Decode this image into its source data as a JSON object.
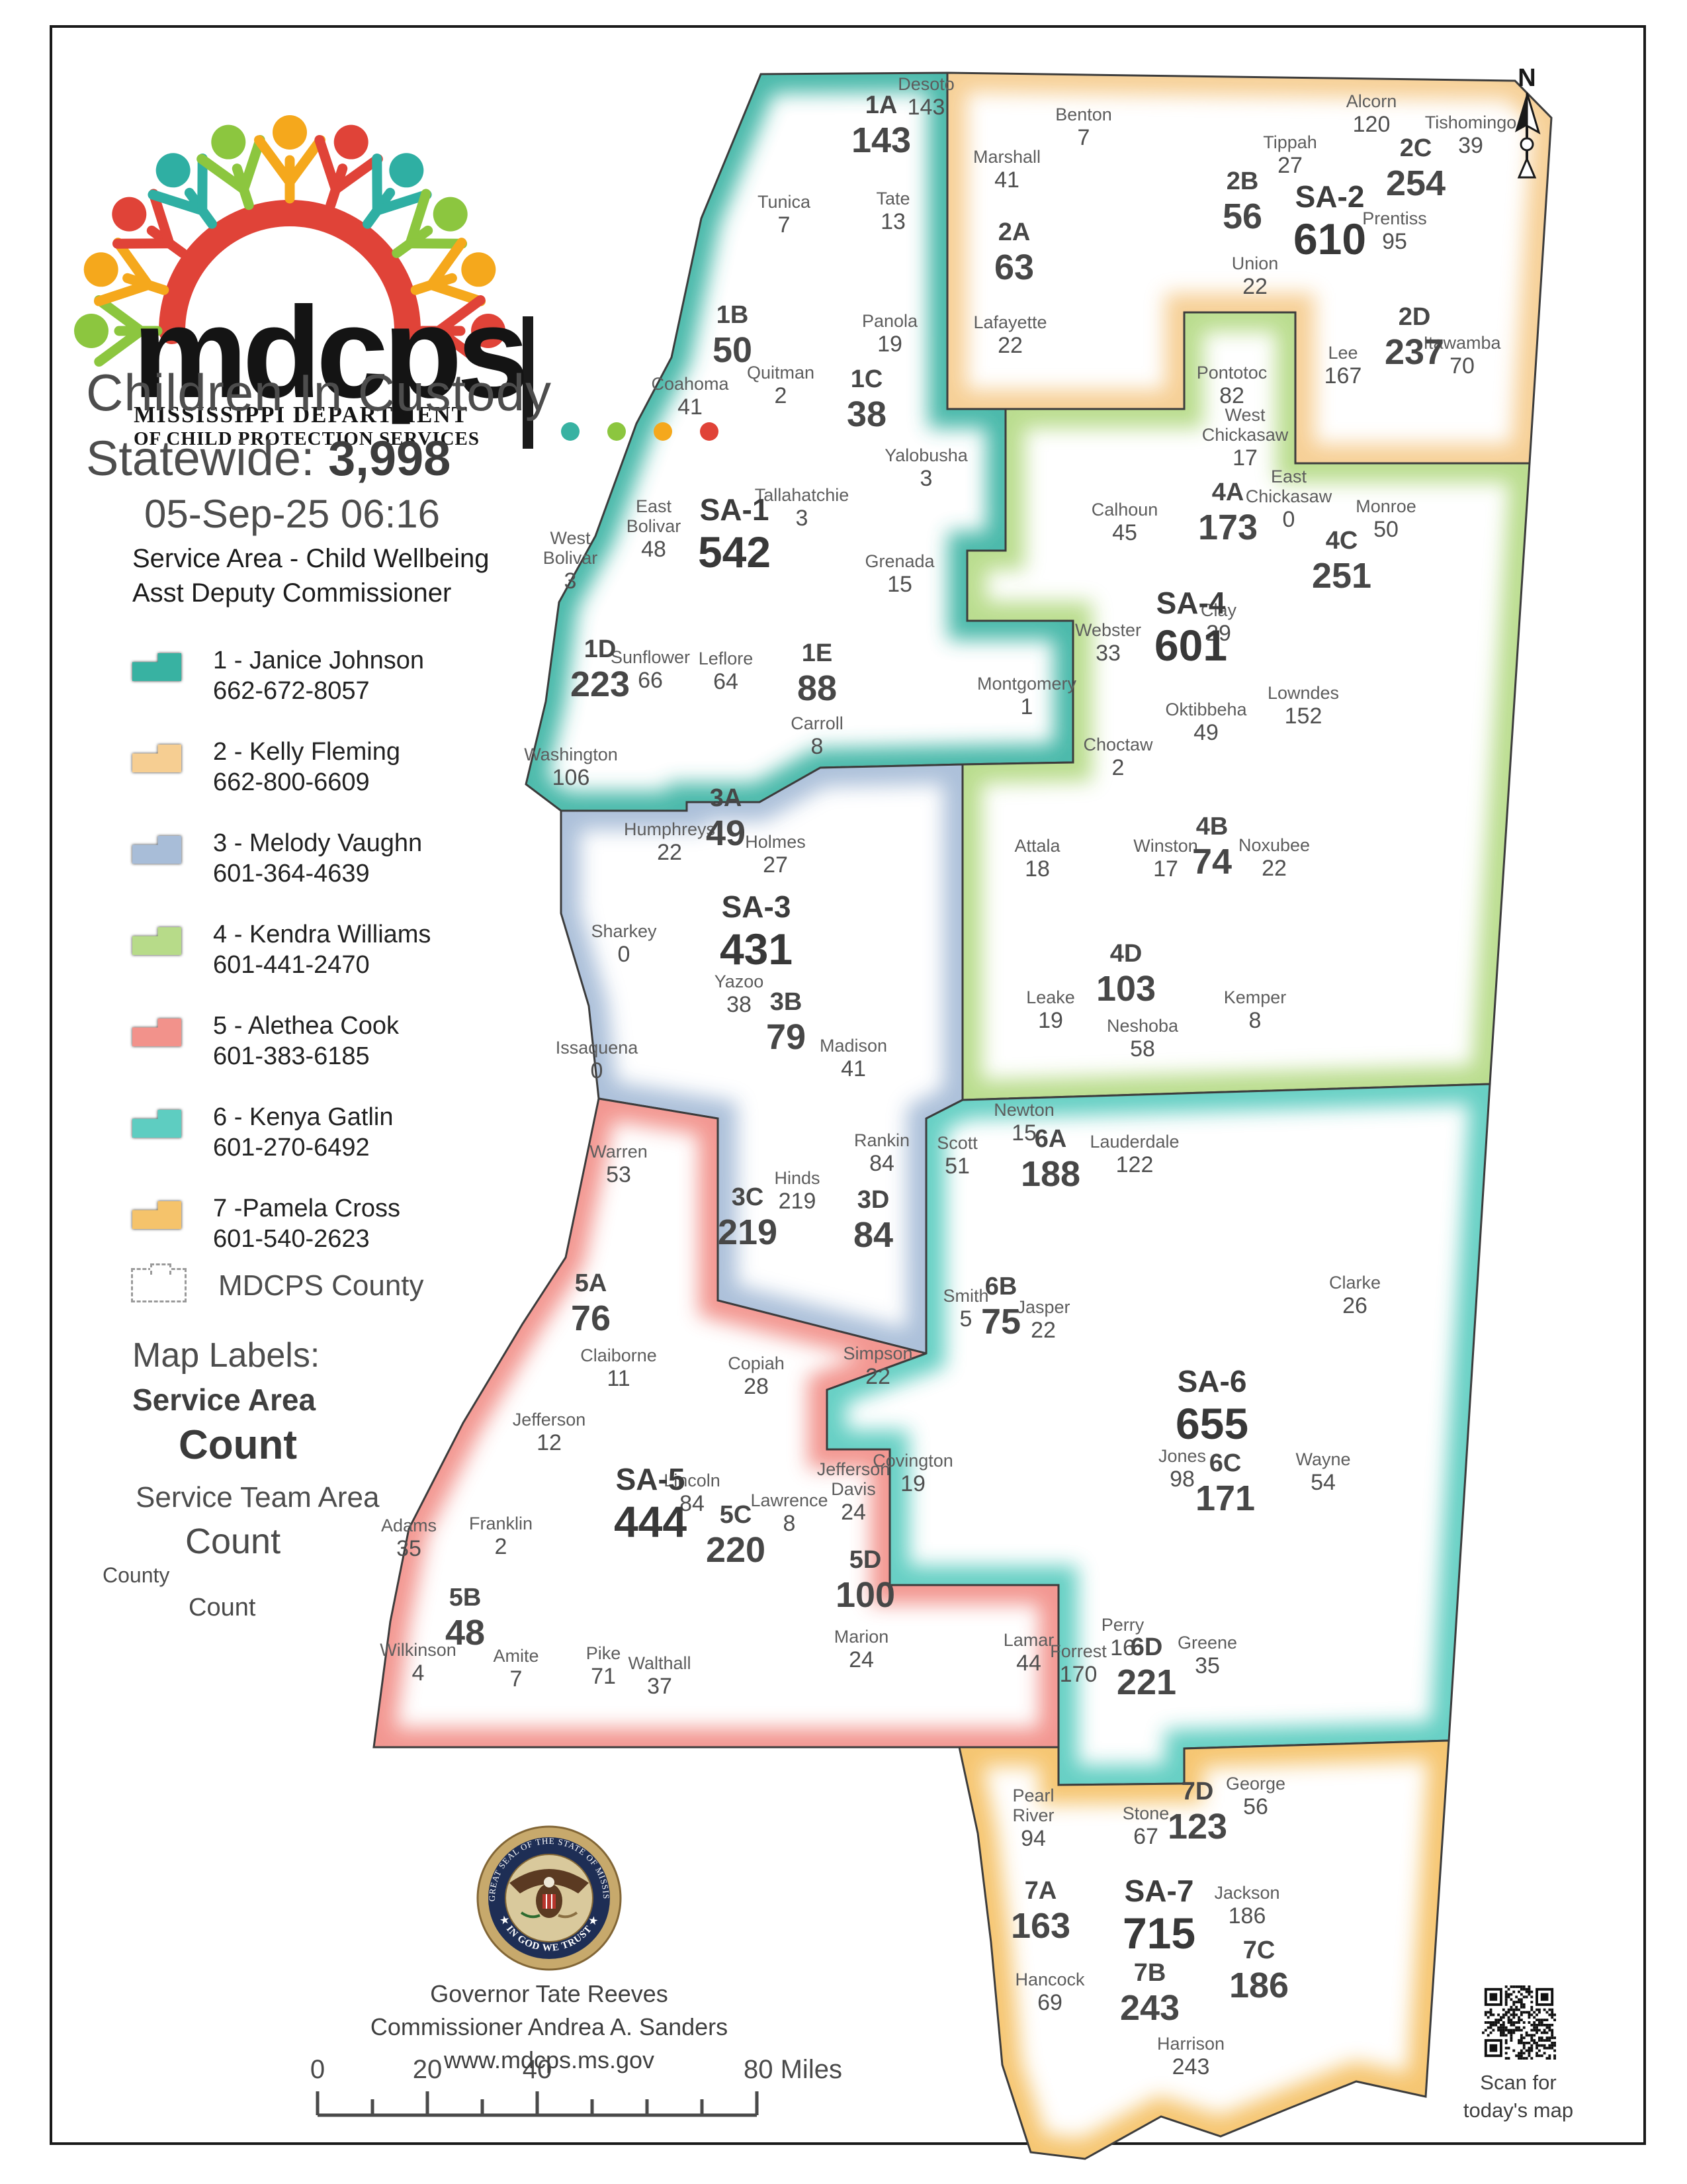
{
  "header": {
    "logo_acronym": "mdcps",
    "logo_org_line1": "MISSISSIPPI DEPARTMENT",
    "logo_org_line2": "OF CHILD PROTECTION SERVICES",
    "title": "Children In Custody",
    "statewide_label": "Statewide:",
    "statewide_value": "3,998",
    "timestamp": "05-Sep-25 06:16"
  },
  "legend": {
    "title": "Service Area - Child Wellbeing Asst Deputy Commissioner",
    "items": [
      {
        "name": "1 - Janice Johnson",
        "phone": "662-672-8057",
        "color": "#38B2A2"
      },
      {
        "name": "2 - Kelly Fleming",
        "phone": "662-800-6609",
        "color": "#F6CE92"
      },
      {
        "name": "3 - Melody Vaughn",
        "phone": "601-364-4639",
        "color": "#A8BDD8"
      },
      {
        "name": "4 - Kendra Williams",
        "phone": "601-441-2470",
        "color": "#B7DB89"
      },
      {
        "name": "5 - Alethea Cook",
        "phone": "601-383-6185",
        "color": "#F2928B"
      },
      {
        "name": "6 - Kenya Gatlin",
        "phone": "601-270-6492",
        "color": "#5ECDC1"
      },
      {
        "name": "7 -Pamela Cross",
        "phone": "601-540-2623",
        "color": "#F5C36B"
      }
    ],
    "county_item": "MDCPS County"
  },
  "map_labels": {
    "heading": "Map Labels:",
    "sa_label": "Service Area",
    "sa_count": "Count",
    "sta_label": "Service Team Area",
    "sta_count": "Count",
    "county_label": "County",
    "county_count": "Count"
  },
  "map": {
    "north_label": "N",
    "service_areas": [
      {
        "code": "SA-1",
        "count": "542"
      },
      {
        "code": "SA-2",
        "count": "610"
      },
      {
        "code": "SA-3",
        "count": "431"
      },
      {
        "code": "SA-4",
        "count": "601"
      },
      {
        "code": "SA-5",
        "count": "444"
      },
      {
        "code": "SA-6",
        "count": "655"
      },
      {
        "code": "SA-7",
        "count": "715"
      }
    ],
    "team_areas": [
      {
        "code": "1A",
        "count": "143"
      },
      {
        "code": "1B",
        "count": "50"
      },
      {
        "code": "1C",
        "count": "38"
      },
      {
        "code": "1D",
        "count": "223"
      },
      {
        "code": "1E",
        "count": "88"
      },
      {
        "code": "2A",
        "count": "63"
      },
      {
        "code": "2B",
        "count": "56"
      },
      {
        "code": "2C",
        "count": "254"
      },
      {
        "code": "2D",
        "count": "237"
      },
      {
        "code": "3A",
        "count": "49"
      },
      {
        "code": "3B",
        "count": "79"
      },
      {
        "code": "3C",
        "count": "219"
      },
      {
        "code": "3D",
        "count": "84"
      },
      {
        "code": "4A",
        "count": "173"
      },
      {
        "code": "4B",
        "count": "74"
      },
      {
        "code": "4C",
        "count": "251"
      },
      {
        "code": "4D",
        "count": "103"
      },
      {
        "code": "5A",
        "count": "76"
      },
      {
        "code": "5B",
        "count": "48"
      },
      {
        "code": "5C",
        "count": "220"
      },
      {
        "code": "5D",
        "count": "100"
      },
      {
        "code": "6A",
        "count": "188"
      },
      {
        "code": "6B",
        "count": "75"
      },
      {
        "code": "6C",
        "count": "171"
      },
      {
        "code": "6D",
        "count": "221"
      },
      {
        "code": "7A",
        "count": "163"
      },
      {
        "code": "7B",
        "count": "243"
      },
      {
        "code": "7C",
        "count": "186"
      },
      {
        "code": "7D",
        "count": "123"
      }
    ],
    "counties": [
      {
        "name": "Desoto",
        "count": "143"
      },
      {
        "name": "Tunica",
        "count": "7"
      },
      {
        "name": "Tate",
        "count": "13"
      },
      {
        "name": "Marshall",
        "count": "41"
      },
      {
        "name": "Benton",
        "count": "7"
      },
      {
        "name": "Tippah",
        "count": "27"
      },
      {
        "name": "Alcorn",
        "count": "120"
      },
      {
        "name": "Tishomingo",
        "count": "39"
      },
      {
        "name": "Prentiss",
        "count": "95"
      },
      {
        "name": "Union",
        "count": "22"
      },
      {
        "name": "Lafayette",
        "count": "22"
      },
      {
        "name": "Coahoma",
        "count": "41"
      },
      {
        "name": "Quitman",
        "count": "2"
      },
      {
        "name": "Panola",
        "count": "19"
      },
      {
        "name": "Yalobusha",
        "count": "3"
      },
      {
        "name": "Tallahatchie",
        "count": "3"
      },
      {
        "name": "Grenada",
        "count": "15"
      },
      {
        "name": "West Bolivar",
        "count": "3"
      },
      {
        "name": "East Bolivar",
        "count": "48"
      },
      {
        "name": "Sunflower",
        "count": "66"
      },
      {
        "name": "Leflore",
        "count": "64"
      },
      {
        "name": "Washington",
        "count": "106"
      },
      {
        "name": "Carroll",
        "count": "8"
      },
      {
        "name": "Montgomery",
        "count": "1"
      },
      {
        "name": "Lee",
        "count": "167"
      },
      {
        "name": "Itawamba",
        "count": "70"
      },
      {
        "name": "Pontotoc",
        "count": "82"
      },
      {
        "name": "Calhoun",
        "count": "45"
      },
      {
        "name": "West Chickasaw",
        "count": "17"
      },
      {
        "name": "East Chickasaw",
        "count": "0"
      },
      {
        "name": "Monroe",
        "count": "50"
      },
      {
        "name": "Webster",
        "count": "33"
      },
      {
        "name": "Clay",
        "count": "29"
      },
      {
        "name": "Oktibbeha",
        "count": "49"
      },
      {
        "name": "Lowndes",
        "count": "152"
      },
      {
        "name": "Choctaw",
        "count": "2"
      },
      {
        "name": "Humphreys",
        "count": "22"
      },
      {
        "name": "Holmes",
        "count": "27"
      },
      {
        "name": "Attala",
        "count": "18"
      },
      {
        "name": "Winston",
        "count": "17"
      },
      {
        "name": "Noxubee",
        "count": "22"
      },
      {
        "name": "Sharkey",
        "count": "0"
      },
      {
        "name": "Yazoo",
        "count": "38"
      },
      {
        "name": "Leake",
        "count": "19"
      },
      {
        "name": "Neshoba",
        "count": "58"
      },
      {
        "name": "Kemper",
        "count": "8"
      },
      {
        "name": "Issaquena",
        "count": "0"
      },
      {
        "name": "Madison",
        "count": "41"
      },
      {
        "name": "Scott",
        "count": "51"
      },
      {
        "name": "Newton",
        "count": "15"
      },
      {
        "name": "Lauderdale",
        "count": "122"
      },
      {
        "name": "Warren",
        "count": "53"
      },
      {
        "name": "Hinds",
        "count": "219"
      },
      {
        "name": "Rankin",
        "count": "84"
      },
      {
        "name": "Smith",
        "count": "5"
      },
      {
        "name": "Jasper",
        "count": "22"
      },
      {
        "name": "Clarke",
        "count": "26"
      },
      {
        "name": "Simpson",
        "count": "22"
      },
      {
        "name": "Claiborne",
        "count": "11"
      },
      {
        "name": "Copiah",
        "count": "28"
      },
      {
        "name": "Jefferson",
        "count": "12"
      },
      {
        "name": "Covington",
        "count": "19"
      },
      {
        "name": "Jones",
        "count": "98"
      },
      {
        "name": "Wayne",
        "count": "54"
      },
      {
        "name": "Adams",
        "count": "35"
      },
      {
        "name": "Franklin",
        "count": "2"
      },
      {
        "name": "Lincoln",
        "count": "84"
      },
      {
        "name": "Lawrence",
        "count": "8"
      },
      {
        "name": "Jefferson Davis",
        "count": "24"
      },
      {
        "name": "Wilkinson",
        "count": "4"
      },
      {
        "name": "Amite",
        "count": "7"
      },
      {
        "name": "Pike",
        "count": "71"
      },
      {
        "name": "Walthall",
        "count": "37"
      },
      {
        "name": "Marion",
        "count": "24"
      },
      {
        "name": "Lamar",
        "count": "44"
      },
      {
        "name": "Forrest",
        "count": "170"
      },
      {
        "name": "Perry",
        "count": "16"
      },
      {
        "name": "Greene",
        "count": "35"
      },
      {
        "name": "Pearl River",
        "count": "94"
      },
      {
        "name": "Stone",
        "count": "67"
      },
      {
        "name": "George",
        "count": "56"
      },
      {
        "name": "Hancock",
        "count": "69"
      },
      {
        "name": "Jackson",
        "count": "186"
      },
      {
        "name": "Harrison",
        "count": "243"
      }
    ]
  },
  "footer": {
    "seal_top_text": "THE GREAT SEAL OF THE STATE OF MISSISSIPPI",
    "seal_bottom_text": "★ IN GOD WE TRUST ★",
    "governor": "Governor Tate Reeves",
    "commissioner": "Commissioner Andrea A. Sanders",
    "website": "www.mdcps.ms.gov",
    "scale_labels": [
      "0",
      "20",
      "40",
      "80 Miles"
    ],
    "qr_caption_line1": "Scan for",
    "qr_caption_line2": "today's map"
  }
}
